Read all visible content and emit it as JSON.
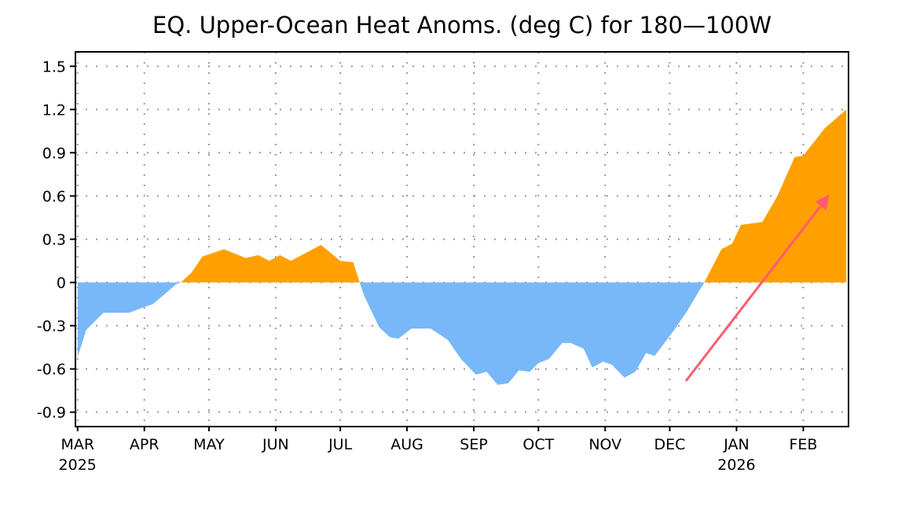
{
  "chart_data": {
    "type": "area",
    "title": "EQ. Upper-Ocean Heat Anoms. (deg C) for 180—100W",
    "xlabel": "",
    "ylabel": "",
    "ylim": [
      -1.0,
      1.6
    ],
    "xlim": [
      "2025-02-28",
      "2026-02-22"
    ],
    "yticks": [
      1.5,
      1.2,
      0.9,
      0.6,
      0.3,
      0,
      -0.3,
      -0.6,
      -0.9
    ],
    "ytick_labels": [
      "1.5",
      "1.2",
      "0.9",
      "0.6",
      "0.3",
      "0",
      "-0.3",
      "-0.6",
      "-0.9"
    ],
    "xticks": [
      {
        "date": "2025-03-01",
        "label": "MAR",
        "year": "2025"
      },
      {
        "date": "2025-04-01",
        "label": "APR"
      },
      {
        "date": "2025-05-01",
        "label": "MAY"
      },
      {
        "date": "2025-06-01",
        "label": "JUN"
      },
      {
        "date": "2025-07-01",
        "label": "JUL"
      },
      {
        "date": "2025-08-01",
        "label": "AUG"
      },
      {
        "date": "2025-09-01",
        "label": "SEP"
      },
      {
        "date": "2025-10-01",
        "label": "OCT"
      },
      {
        "date": "2025-11-01",
        "label": "NOV"
      },
      {
        "date": "2025-12-01",
        "label": "DEC"
      },
      {
        "date": "2026-01-01",
        "label": "JAN",
        "year": "2026"
      },
      {
        "date": "2026-02-01",
        "label": "FEB"
      }
    ],
    "grid": true,
    "colors": {
      "positive": "#ffa000",
      "negative": "#78b8f8",
      "grid": "#999999",
      "annotation_arrow": "#ff5a6e"
    },
    "annotation": "arrow-up-right",
    "series": [
      {
        "x": [
          "2025-03-01",
          "2025-03-05",
          "2025-03-13",
          "2025-03-25",
          "2025-04-01",
          "2025-04-05",
          "2025-04-16",
          "2025-04-18",
          "2025-04-23",
          "2025-04-28",
          "2025-05-08",
          "2025-05-18",
          "2025-05-24",
          "2025-05-29",
          "2025-06-03",
          "2025-06-08",
          "2025-06-22",
          "2025-07-01",
          "2025-07-07",
          "2025-07-10",
          "2025-07-12",
          "2025-07-19",
          "2025-07-24",
          "2025-07-28",
          "2025-08-03",
          "2025-08-12",
          "2025-08-20",
          "2025-08-26",
          "2025-09-02",
          "2025-09-07",
          "2025-09-12",
          "2025-09-17",
          "2025-09-22",
          "2025-09-27",
          "2025-10-01",
          "2025-10-06",
          "2025-10-12",
          "2025-10-16",
          "2025-10-22",
          "2025-10-26",
          "2025-10-31",
          "2025-11-04",
          "2025-11-10",
          "2025-11-15",
          "2025-11-20",
          "2025-11-24",
          "2025-12-03",
          "2025-12-09",
          "2025-12-17",
          "2025-12-25",
          "2025-12-30",
          "2026-01-03",
          "2026-01-13",
          "2026-01-20",
          "2026-01-28",
          "2026-02-01",
          "2026-02-11",
          "2026-02-21"
        ],
        "y": [
          -0.52,
          -0.33,
          -0.21,
          -0.21,
          -0.17,
          -0.15,
          -0.01,
          0,
          0.07,
          0.18,
          0.23,
          0.17,
          0.19,
          0.15,
          0.19,
          0.15,
          0.26,
          0.15,
          0.14,
          0,
          -0.09,
          -0.31,
          -0.38,
          -0.39,
          -0.32,
          -0.32,
          -0.4,
          -0.53,
          -0.64,
          -0.62,
          -0.71,
          -0.7,
          -0.61,
          -0.62,
          -0.56,
          -0.53,
          -0.42,
          -0.42,
          -0.46,
          -0.59,
          -0.55,
          -0.57,
          -0.66,
          -0.62,
          -0.49,
          -0.51,
          -0.33,
          -0.2,
          0,
          0.23,
          0.27,
          0.4,
          0.42,
          0.6,
          0.87,
          0.88,
          1.07,
          1.2
        ]
      }
    ]
  }
}
